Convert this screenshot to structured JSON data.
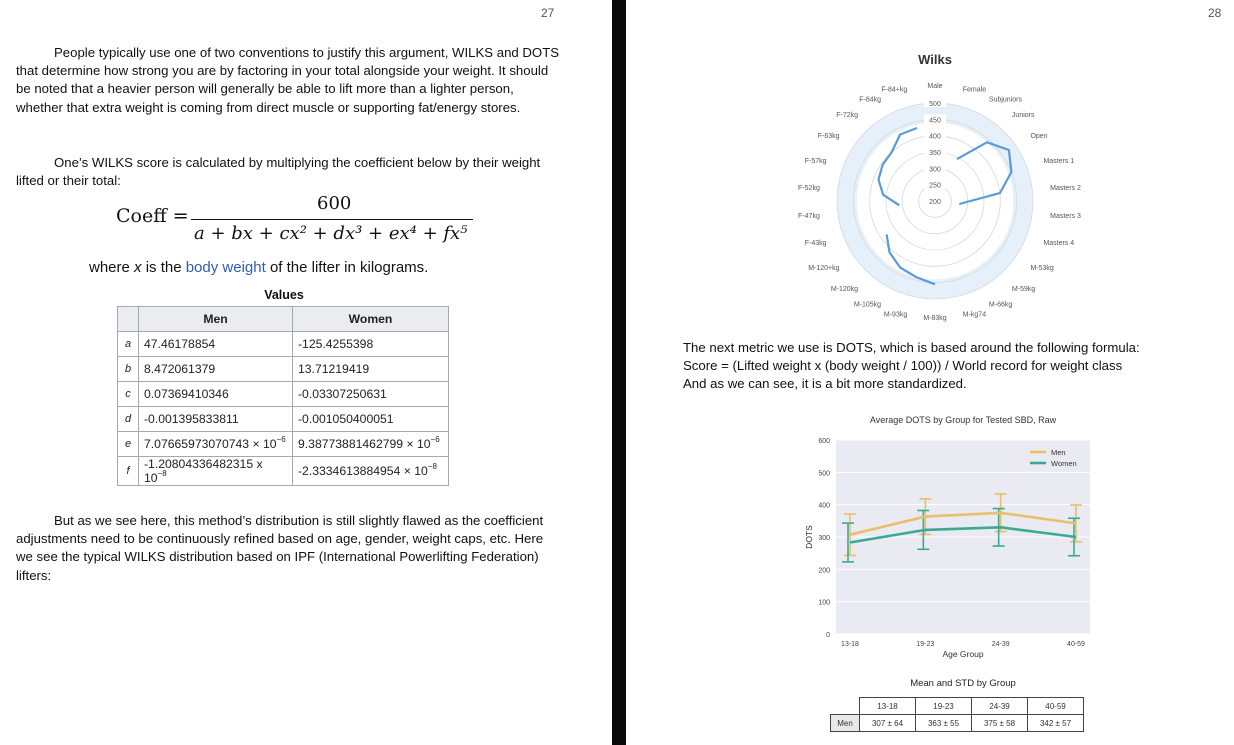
{
  "left_page": {
    "page_number": "27",
    "paragraph1": "People typically use one of two conventions to justify this argument, WILKS and DOTS that determine how strong you are by factoring in your total alongside your weight. It should be noted that a heavier person will generally be able to lift more than a lighter person, whether that extra weight is coming from direct muscle or supporting fat/energy stores.",
    "paragraph2": "One’s WILKS score is calculated by multiplying the coefficient below by their weight lifted or their total:",
    "formula": {
      "lhs": "Coeff =",
      "numerator": "600",
      "denominator": "a + bx + cx² + dx³ + ex⁴ + fx⁵"
    },
    "where": {
      "pre": "where ",
      "var": "x",
      "mid": " is the ",
      "link": "body weight",
      "post": " of the lifter in kilograms."
    },
    "table": {
      "caption": "Values",
      "headers": [
        "Men",
        "Women"
      ],
      "rows": [
        {
          "k": "a",
          "men": "47.46178854",
          "women": "-125.4255398"
        },
        {
          "k": "b",
          "men": "8.472061379",
          "women": "13.71219419"
        },
        {
          "k": "c",
          "men": "0.07369410346",
          "women": "-0.03307250631"
        },
        {
          "k": "d",
          "men": "-0.001395833811",
          "women": "-0.001050400051"
        },
        {
          "k": "e",
          "men": "7.07665973070743 × 10",
          "men_exp": "−6",
          "women": "9.38773881462799 × 10",
          "women_exp": "−6"
        },
        {
          "k": "f",
          "men": "-1.20804336482315 x 10",
          "men_exp": "−8",
          "women": "-2.3334613884954 × 10",
          "women_exp": "−8"
        }
      ]
    },
    "paragraph3": "But as we see here, this method’s distribution is still slightly flawed as the coefficient adjustments need to be continuously refined based on age, gender, weight caps, etc. Here we see the typical WILKS distribution based on IPF (International Powerlifting Federation) lifters:"
  },
  "right_page": {
    "page_number": "28",
    "dots_text": [
      "The next metric we use is DOTS, which is based around the following formula:",
      "Score = (Lifted weight x (body weight / 100)) / World record for weight class",
      "And as we can see, it is a bit more standardized."
    ],
    "dots_table": {
      "caption": "Mean and STD by Group",
      "headers": [
        "13-18",
        "19-23",
        "24-39",
        "40-59"
      ],
      "row_label": "Men",
      "row": [
        "307 ± 64",
        "363 ± 55",
        "375 ± 58",
        "342 ± 57"
      ]
    }
  },
  "chart_data": [
    {
      "type": "radar",
      "title": "Wilks",
      "categories": [
        "Male",
        "Female",
        "Subjuniors",
        "Juniors",
        "Open",
        "Masters 1",
        "Masters 2",
        "Masters 3",
        "Masters 4",
        "M-53kg",
        "M-59kg",
        "M-66kg",
        "M-kg74",
        "M-83kg",
        "M-93kg",
        "M-105kg",
        "M-120kg",
        "M-120+kg",
        "F-43kg",
        "F-47kg",
        "F-52kg",
        "F-57kg",
        "F-63kg",
        "F-72kg",
        "F-84kg",
        "F-84+kg"
      ],
      "radial_ticks": [
        200,
        250,
        300,
        350,
        400,
        450,
        500
      ],
      "rlim": [
        200,
        500
      ],
      "band": {
        "low": 440,
        "high": 500
      },
      "values": [
        null,
        null,
        345,
        440,
        475,
        450,
        400,
        275,
        null,
        null,
        null,
        null,
        null,
        455,
        440,
        430,
        410,
        380,
        null,
        310,
        360,
        385,
        395,
        400,
        430,
        430
      ]
    },
    {
      "type": "line",
      "title": "Average DOTS by Group for Tested SBD, Raw",
      "xlabel": "Age Group",
      "ylabel": "DOTS",
      "categories": [
        "13-18",
        "19-23",
        "24-39",
        "40-59"
      ],
      "ylim": [
        0,
        600
      ],
      "yticks": [
        0,
        100,
        200,
        300,
        400,
        500,
        600
      ],
      "legend": "top-right",
      "series": [
        {
          "name": "Men",
          "color": "#e8bf6a",
          "values": [
            307,
            363,
            375,
            342
          ],
          "std": [
            64,
            55,
            58,
            57
          ]
        },
        {
          "name": "Women",
          "color": "#3aaa96",
          "values": [
            283,
            322,
            330,
            300
          ],
          "std": [
            60,
            60,
            58,
            58
          ]
        }
      ]
    }
  ]
}
